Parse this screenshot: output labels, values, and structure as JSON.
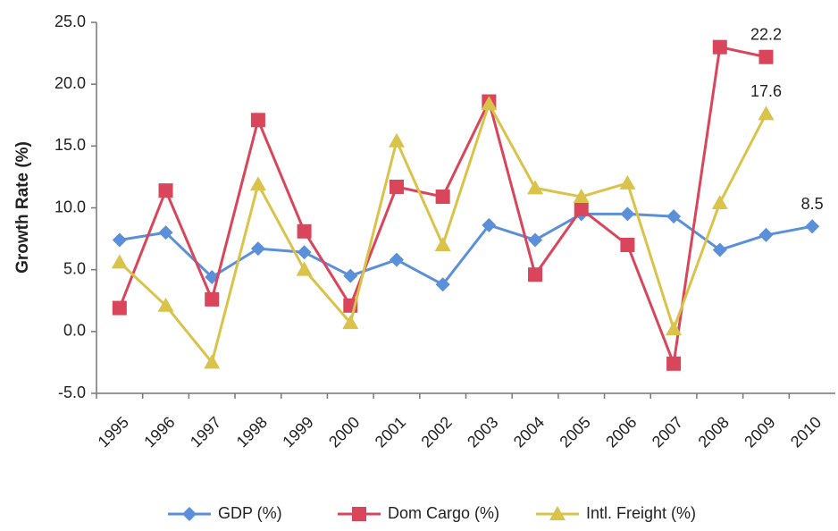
{
  "chart_data": {
    "type": "line",
    "y_label": "Growth Rate (%)",
    "categories": [
      "1995",
      "1996",
      "1997",
      "1998",
      "1999",
      "2000",
      "2001",
      "2002",
      "2003",
      "2004",
      "2005",
      "2006",
      "2007",
      "2008",
      "2009",
      "2010"
    ],
    "ylim": [
      -5,
      25
    ],
    "yticks": [
      {
        "value": -5,
        "label": "-5.0"
      },
      {
        "value": 0,
        "label": "0.0"
      },
      {
        "value": 5,
        "label": "5.0"
      },
      {
        "value": 10,
        "label": "10.0"
      },
      {
        "value": 15,
        "label": "15.0"
      },
      {
        "value": 20,
        "label": "20.0"
      },
      {
        "value": 25,
        "label": "25.0"
      }
    ],
    "grid": false,
    "legend": "bottom",
    "series": [
      {
        "name": "GDP (%)",
        "color": "#5b8fd9",
        "marker": "diamond",
        "values": [
          7.4,
          8.0,
          4.4,
          6.7,
          6.4,
          4.5,
          5.8,
          3.8,
          8.6,
          7.4,
          9.5,
          9.5,
          9.3,
          6.6,
          7.8,
          8.5
        ],
        "value_labels": [
          null,
          null,
          null,
          null,
          null,
          null,
          null,
          null,
          null,
          null,
          null,
          null,
          null,
          null,
          null,
          "8.5"
        ]
      },
      {
        "name": "Dom Cargo (%)",
        "color": "#d9455a",
        "marker": "square",
        "values": [
          1.9,
          11.4,
          2.6,
          17.1,
          8.1,
          2.1,
          11.7,
          10.9,
          18.6,
          4.6,
          9.9,
          7.0,
          -2.6,
          23.0,
          22.2,
          null
        ],
        "value_labels": [
          null,
          null,
          null,
          null,
          null,
          null,
          null,
          null,
          null,
          null,
          null,
          null,
          null,
          null,
          "22.2",
          null
        ]
      },
      {
        "name": "Intl. Freight (%)",
        "color": "#d9c34a",
        "marker": "triangle",
        "values": [
          5.6,
          2.1,
          -2.5,
          11.9,
          5.0,
          0.7,
          15.4,
          7.0,
          18.4,
          11.6,
          10.9,
          12.0,
          0.2,
          10.4,
          17.6,
          null
        ],
        "value_labels": [
          null,
          null,
          null,
          null,
          null,
          null,
          null,
          null,
          null,
          null,
          null,
          null,
          null,
          null,
          "17.6",
          null
        ]
      }
    ]
  }
}
